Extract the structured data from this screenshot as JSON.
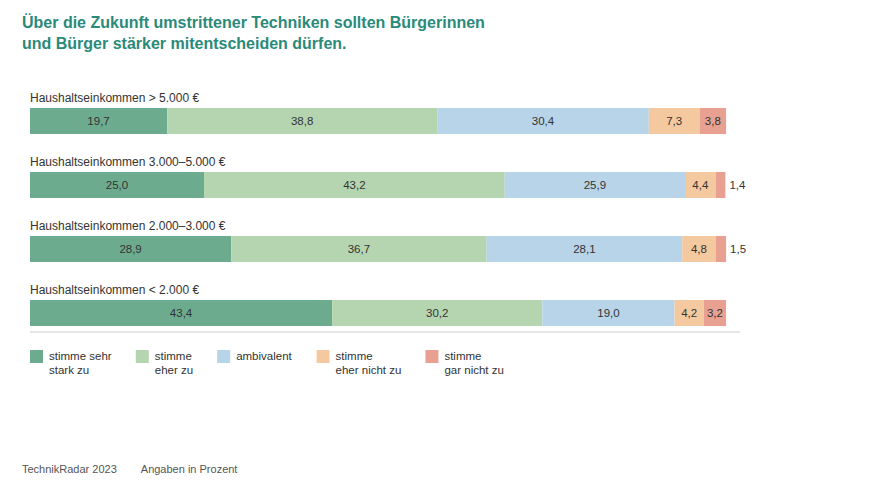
{
  "chart_data": {
    "type": "bar",
    "orientation": "horizontal",
    "stacked": true,
    "data_labels": true,
    "tick_labels": false,
    "legend": "bottom",
    "title": "Über die Zukunft umstrittener Techniken sollten Bürgerinnen\nund Bürger stärker mitentscheiden dürfen.",
    "annotations": [
      "TechnikRadar 2023",
      "Angaben in Prozent"
    ],
    "categories": [
      "Haushaltseinkommen > 5.000 €",
      "Haushaltseinkommen 3.000–5.000 €",
      "Haushaltseinkommen 2.000–3.000 €",
      "Haushaltseinkommen < 2.000 €"
    ],
    "xlim": [
      0,
      102
    ],
    "series": [
      {
        "name": "stimme sehr\nstark zu",
        "color": "#6dab8e",
        "values": [
          19.7,
          25.0,
          28.9,
          43.4
        ],
        "value_labels": [
          "19,7",
          "25,0",
          "28,9",
          "43,4"
        ]
      },
      {
        "name": "stimme\neher zu",
        "color": "#b5d5b0",
        "values": [
          38.8,
          43.2,
          36.7,
          30.2
        ],
        "value_labels": [
          "38,8",
          "43,2",
          "36,7",
          "30,2"
        ]
      },
      {
        "name": "ambivalent",
        "color": "#b8d4e8",
        "values": [
          30.4,
          25.9,
          28.1,
          19.0
        ],
        "value_labels": [
          "30,4",
          "25,9",
          "28,1",
          "19,0"
        ]
      },
      {
        "name": "stimme\neher nicht zu",
        "color": "#f5c9a0",
        "values": [
          7.3,
          4.4,
          4.8,
          4.2
        ],
        "value_labels": [
          "7,3",
          "4,4",
          "4,8",
          "4,2"
        ]
      },
      {
        "name": "stimme\ngar nicht zu",
        "color": "#e8a090",
        "values": [
          3.8,
          1.4,
          1.5,
          3.2
        ],
        "value_labels": [
          "3,8",
          "1,4",
          "1,5",
          "3,2"
        ]
      }
    ]
  }
}
